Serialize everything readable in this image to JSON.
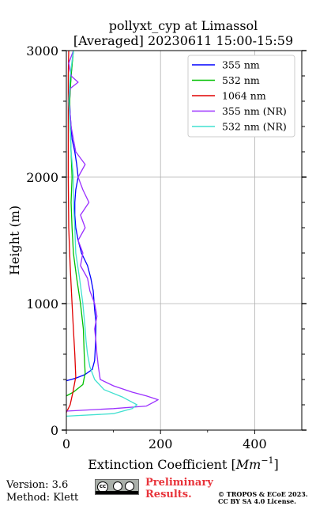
{
  "chart_data": {
    "type": "line",
    "title": "pollyxt_cyp at Limassol",
    "subtitle": "[Averaged] 20230611 15:00-15:59",
    "xlabel": "Extinction Coefficient [Mm^-1]",
    "ylabel": "Height (m)",
    "xlim": [
      0,
      500
    ],
    "ylim": [
      0,
      3000
    ],
    "xticks": [
      0,
      200,
      400
    ],
    "yticks": [
      0,
      1000,
      2000,
      3000
    ],
    "grid": true,
    "legend_position": "top-right",
    "series": [
      {
        "name": "355 nm",
        "color": "#0000ff",
        "points": [
          [
            0,
            390
          ],
          [
            20,
            410
          ],
          [
            40,
            440
          ],
          [
            55,
            480
          ],
          [
            60,
            550
          ],
          [
            62,
            700
          ],
          [
            63,
            850
          ],
          [
            60,
            950
          ],
          [
            57,
            1100
          ],
          [
            52,
            1200
          ],
          [
            45,
            1300
          ],
          [
            32,
            1400
          ],
          [
            25,
            1500
          ],
          [
            20,
            1600
          ],
          [
            18,
            1700
          ],
          [
            18,
            1800
          ],
          [
            20,
            1900
          ],
          [
            25,
            2000
          ],
          [
            22,
            2100
          ],
          [
            18,
            2200
          ],
          [
            12,
            2300
          ],
          [
            10,
            2400
          ],
          [
            8,
            2500
          ],
          [
            7,
            2600
          ],
          [
            8,
            2700
          ],
          [
            10,
            2800
          ],
          [
            12,
            2900
          ],
          [
            15,
            3000
          ]
        ]
      },
      {
        "name": "532 nm",
        "color": "#00c000",
        "points": [
          [
            0,
            270
          ],
          [
            15,
            300
          ],
          [
            35,
            360
          ],
          [
            40,
            450
          ],
          [
            38,
            600
          ],
          [
            36,
            800
          ],
          [
            30,
            1000
          ],
          [
            22,
            1200
          ],
          [
            15,
            1400
          ],
          [
            12,
            1600
          ],
          [
            10,
            1800
          ],
          [
            12,
            2000
          ],
          [
            10,
            2200
          ],
          [
            8,
            2400
          ],
          [
            7,
            2600
          ],
          [
            10,
            2800
          ],
          [
            15,
            3000
          ]
        ]
      },
      {
        "name": "1064 nm",
        "color": "#e00000",
        "points": [
          [
            0,
            140
          ],
          [
            8,
            200
          ],
          [
            14,
            300
          ],
          [
            20,
            420
          ],
          [
            18,
            600
          ],
          [
            15,
            800
          ],
          [
            12,
            1000
          ],
          [
            8,
            1300
          ],
          [
            5,
            1600
          ],
          [
            4,
            2000
          ],
          [
            4,
            2400
          ],
          [
            4,
            2800
          ],
          [
            5,
            3000
          ]
        ]
      },
      {
        "name": "355 nm (NR)",
        "color": "#9b30ff",
        "points": [
          [
            0,
            150
          ],
          [
            100,
            170
          ],
          [
            170,
            190
          ],
          [
            185,
            220
          ],
          [
            195,
            240
          ],
          [
            170,
            270
          ],
          [
            140,
            300
          ],
          [
            100,
            350
          ],
          [
            72,
            400
          ],
          [
            68,
            500
          ],
          [
            65,
            600
          ],
          [
            63,
            700
          ],
          [
            60,
            800
          ],
          [
            65,
            900
          ],
          [
            60,
            1000
          ],
          [
            50,
            1100
          ],
          [
            45,
            1200
          ],
          [
            30,
            1300
          ],
          [
            35,
            1400
          ],
          [
            25,
            1500
          ],
          [
            40,
            1600
          ],
          [
            30,
            1700
          ],
          [
            48,
            1800
          ],
          [
            35,
            1900
          ],
          [
            25,
            2000
          ],
          [
            40,
            2100
          ],
          [
            20,
            2200
          ],
          [
            15,
            2300
          ],
          [
            10,
            2400
          ],
          [
            8,
            2500
          ],
          [
            5,
            2600
          ],
          [
            8,
            2700
          ],
          [
            25,
            2750
          ],
          [
            10,
            2800
          ],
          [
            5,
            2900
          ],
          [
            15,
            3000
          ]
        ]
      },
      {
        "name": "532 nm (NR)",
        "color": "#40e0d0",
        "points": [
          [
            0,
            110
          ],
          [
            100,
            130
          ],
          [
            140,
            170
          ],
          [
            150,
            200
          ],
          [
            120,
            260
          ],
          [
            80,
            320
          ],
          [
            60,
            400
          ],
          [
            50,
            500
          ],
          [
            45,
            600
          ],
          [
            42,
            700
          ],
          [
            40,
            800
          ],
          [
            35,
            1000
          ],
          [
            28,
            1200
          ],
          [
            20,
            1400
          ],
          [
            18,
            1600
          ],
          [
            15,
            1800
          ],
          [
            15,
            2000
          ],
          [
            10,
            2200
          ],
          [
            8,
            2400
          ],
          [
            5,
            2600
          ],
          [
            8,
            2800
          ],
          [
            15,
            3000
          ]
        ]
      }
    ]
  },
  "footer": {
    "version": "Version: 3.6",
    "method": "Method: Klett",
    "preliminary_line1": "Preliminary",
    "preliminary_line2": "Results.",
    "copyright_line1": "© TROPOS & ECoE 2023.",
    "copyright_line2": "CC BY SA 4.0 License."
  }
}
